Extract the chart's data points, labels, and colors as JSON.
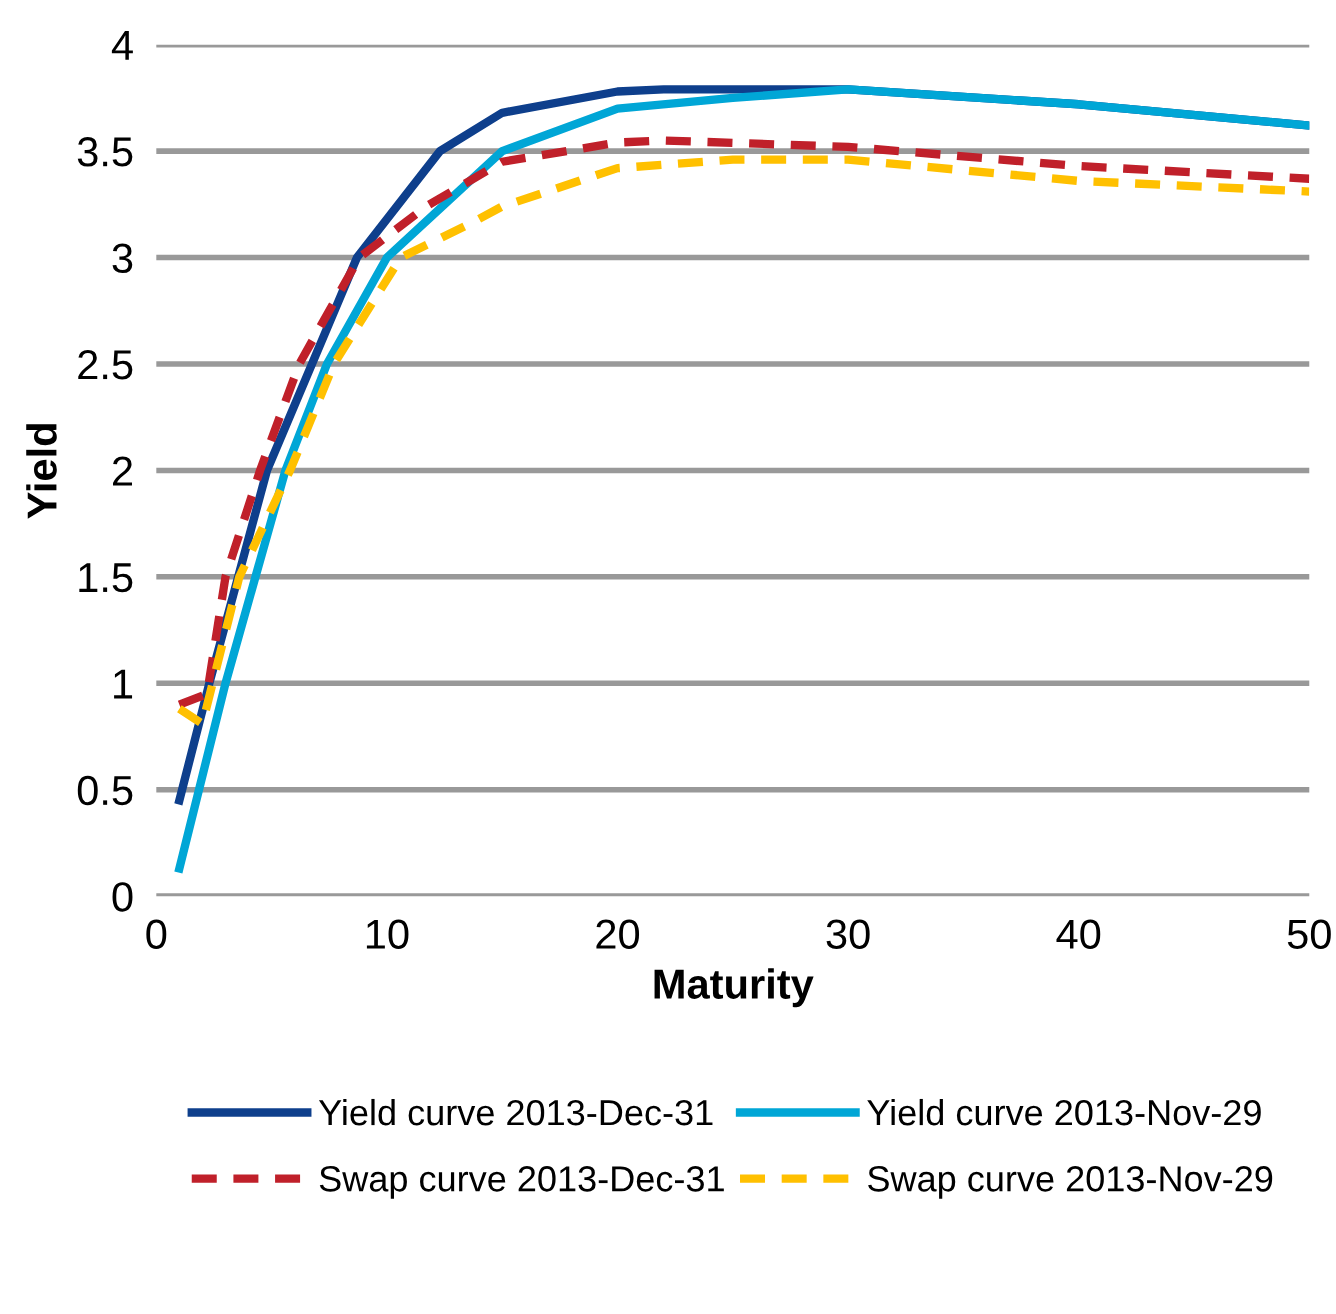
{
  "chart_data": {
    "type": "line",
    "xlabel": "Maturity",
    "ylabel": "Yield",
    "xlim": [
      0,
      50
    ],
    "ylim": [
      0,
      4
    ],
    "xticks": [
      0,
      10,
      20,
      30,
      40,
      50
    ],
    "yticks": [
      0,
      0.5,
      1,
      1.5,
      2,
      2.5,
      3,
      3.5,
      4
    ],
    "grid": "y",
    "legend": "bottom",
    "series": [
      {
        "name": "Yield curve 2013-Dec-31",
        "color": "#0e3f8c",
        "line_style": "solid",
        "x": [
          1,
          2.3,
          4.8,
          8.7,
          12.3,
          15,
          20,
          22,
          30,
          40,
          50
        ],
        "values": [
          0.45,
          1,
          2,
          3,
          3.5,
          3.68,
          3.78,
          3.79,
          3.79,
          3.72,
          3.62
        ]
      },
      {
        "name": "Yield curve 2013-Nov-29",
        "color": "#00a6d6",
        "line_style": "solid",
        "x": [
          1,
          3,
          5.6,
          7.4,
          10,
          15,
          20,
          25,
          30,
          40,
          50
        ],
        "values": [
          0.13,
          1,
          2,
          2.5,
          3,
          3.5,
          3.7,
          3.75,
          3.79,
          3.72,
          3.62
        ]
      },
      {
        "name": "Swap curve 2013-Dec-31",
        "color": "#c0202a",
        "line_style": "dashed",
        "x": [
          1,
          2.2,
          3,
          4.5,
          6.2,
          8.8,
          11.7,
          15,
          20,
          22,
          30,
          40,
          50
        ],
        "values": [
          0.9,
          0.95,
          1.5,
          2,
          2.5,
          3,
          3.24,
          3.45,
          3.54,
          3.55,
          3.52,
          3.43,
          3.37
        ]
      },
      {
        "name": "Swap curve 2013-Nov-29",
        "color": "#ffc000",
        "line_style": "dashed",
        "x": [
          1,
          2,
          3.6,
          5.8,
          7.7,
          10.6,
          13.8,
          15,
          20,
          25,
          30,
          40,
          50
        ],
        "values": [
          0.88,
          0.81,
          1.5,
          2,
          2.5,
          3,
          3.17,
          3.24,
          3.42,
          3.46,
          3.46,
          3.36,
          3.31
        ]
      }
    ]
  }
}
